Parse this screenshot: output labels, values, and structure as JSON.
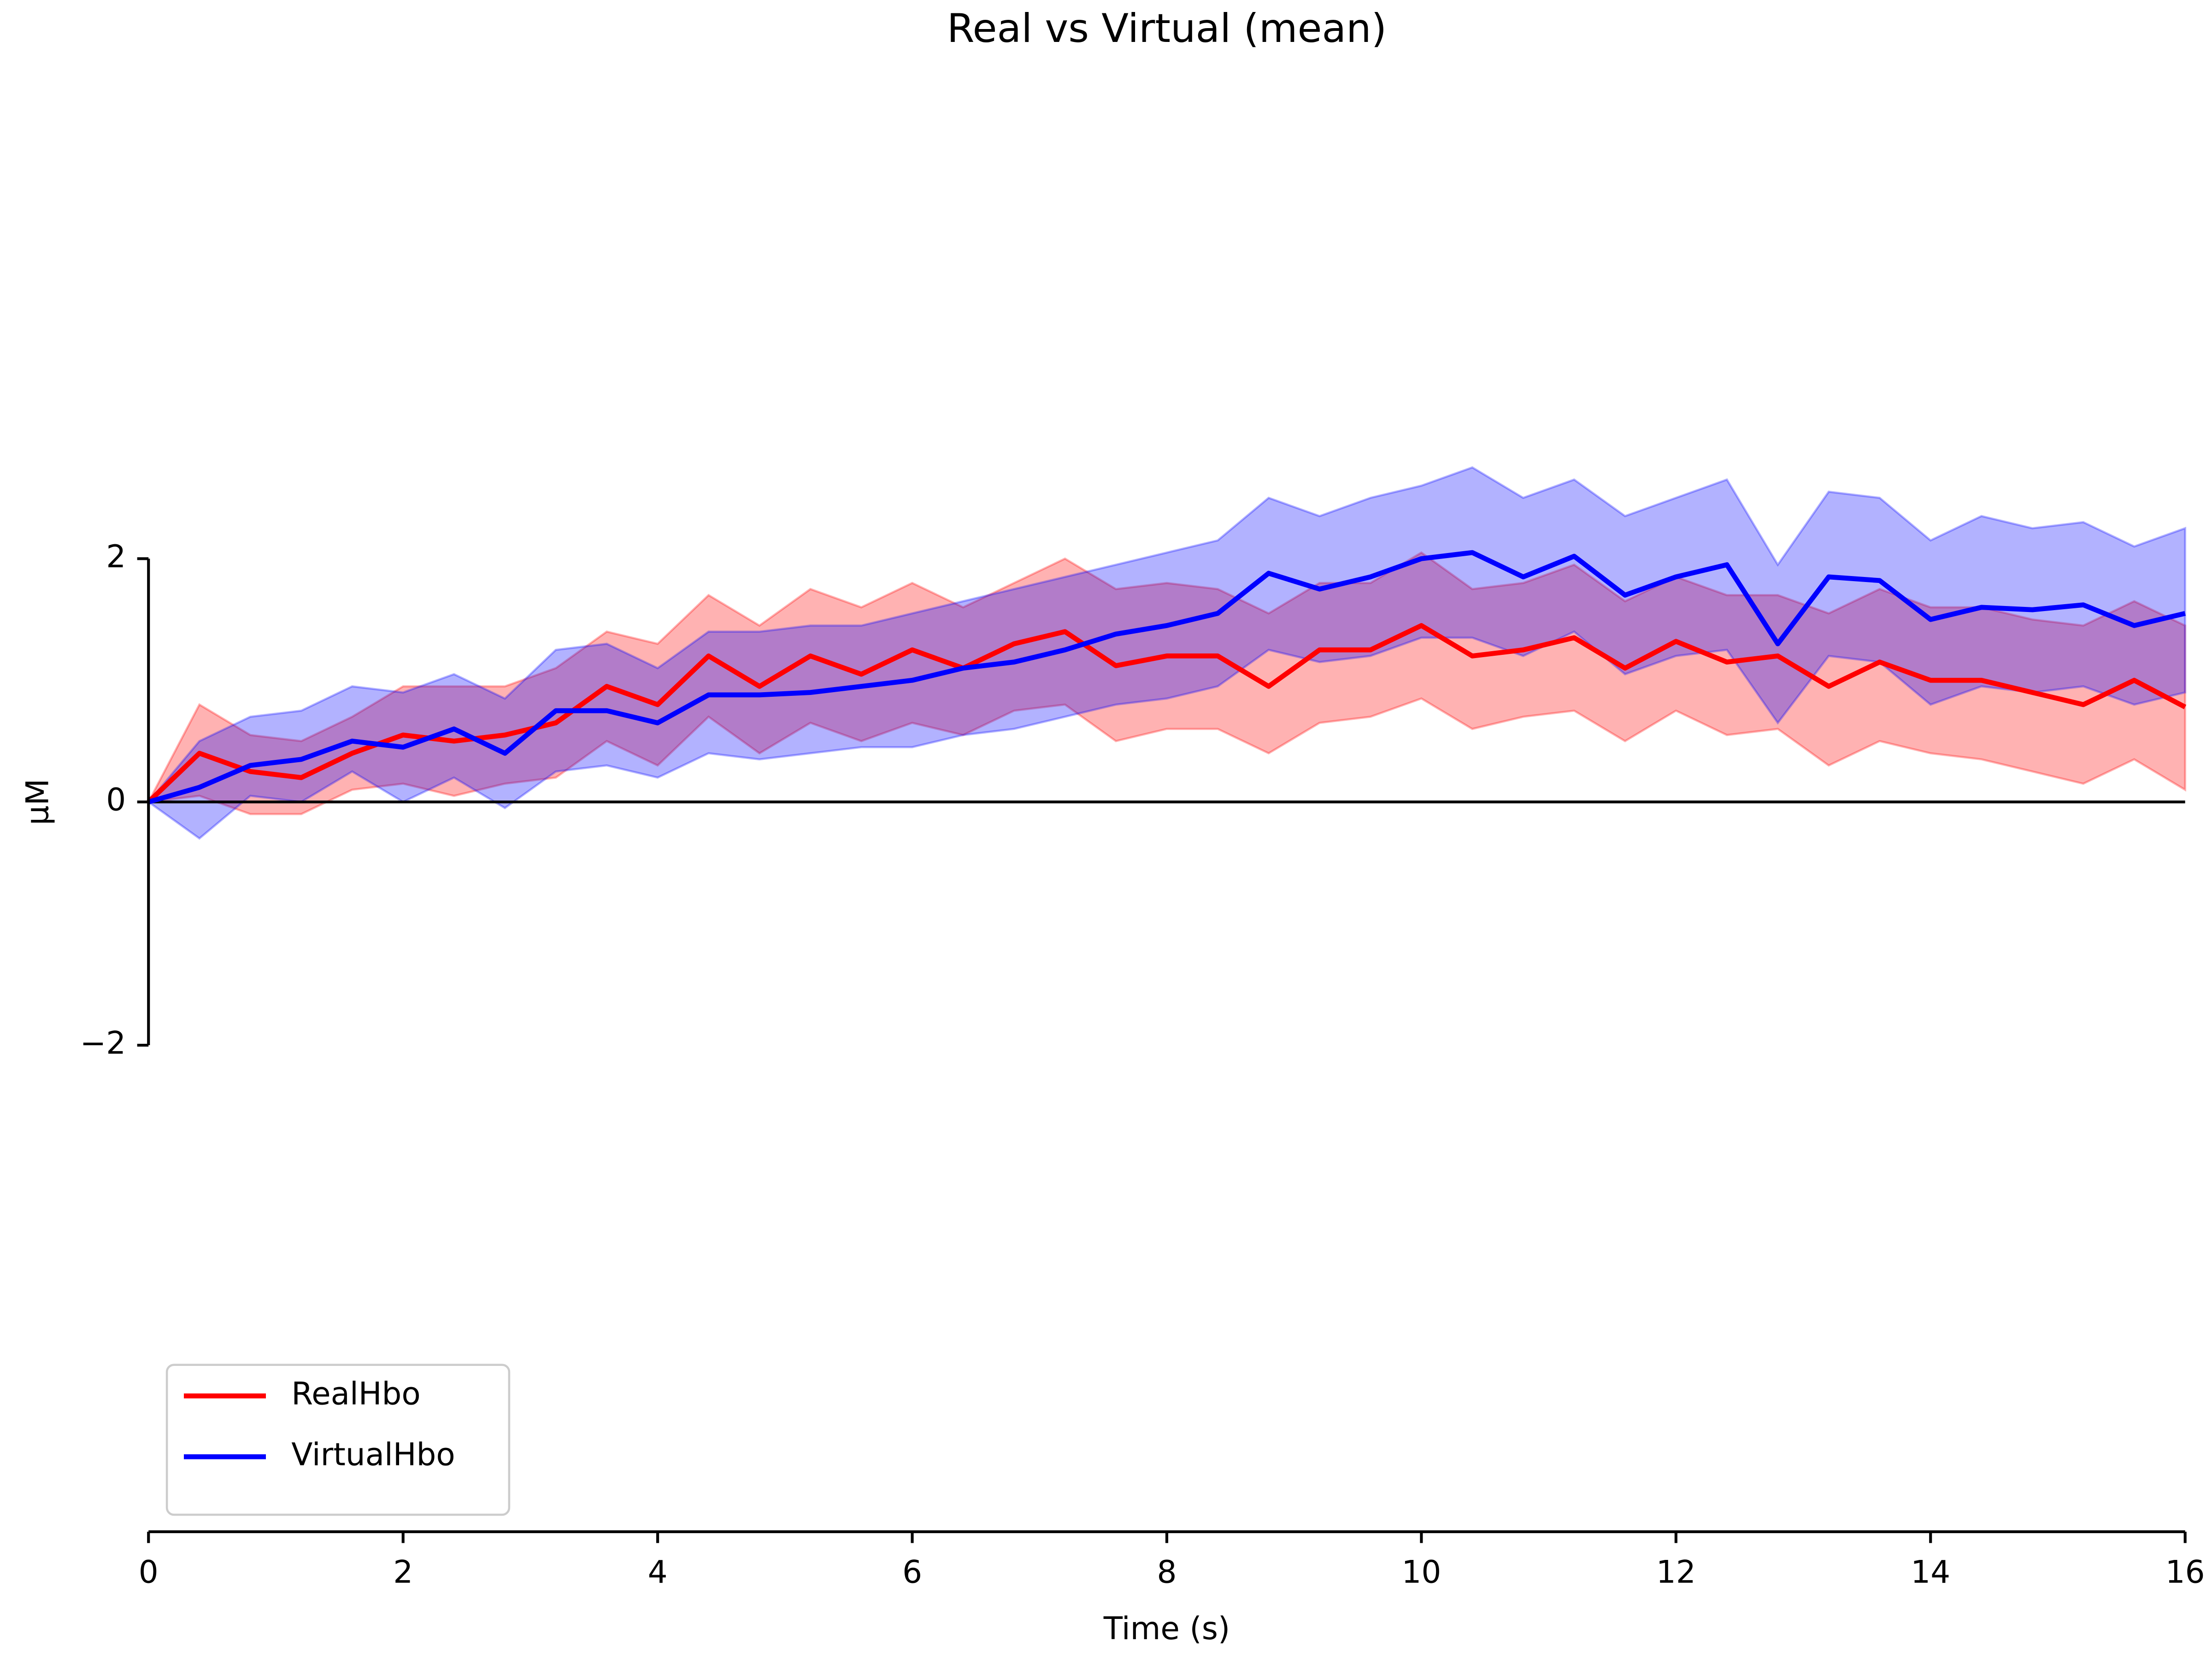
{
  "chart_data": {
    "type": "line",
    "title": "Real vs Virtual (mean)",
    "x_label": "Time (s)",
    "y_label": "µM",
    "x": [
      0,
      0.4,
      0.8,
      1.2,
      1.6,
      2.0,
      2.4,
      2.8,
      3.2,
      3.6,
      4.0,
      4.4,
      4.8,
      5.2,
      5.6,
      6.0,
      6.4,
      6.8,
      7.2,
      7.6,
      8.0,
      8.4,
      8.8,
      9.2,
      9.6,
      10.0,
      10.4,
      10.8,
      11.2,
      11.6,
      12.0,
      12.4,
      12.8,
      13.2,
      13.6,
      14.0,
      14.4,
      14.8,
      15.2,
      15.6,
      16.0
    ],
    "series": [
      {
        "name": "RealHbo",
        "color": "#ff0000",
        "values": [
          0,
          0.4,
          0.25,
          0.2,
          0.4,
          0.55,
          0.5,
          0.55,
          0.65,
          0.95,
          0.8,
          1.2,
          0.95,
          1.2,
          1.05,
          1.25,
          1.1,
          1.3,
          1.4,
          1.12,
          1.2,
          1.2,
          0.95,
          1.25,
          1.25,
          1.45,
          1.2,
          1.25,
          1.35,
          1.1,
          1.32,
          1.15,
          1.2,
          0.95,
          1.15,
          1.0,
          1.0,
          0.9,
          0.8,
          1.0,
          0.78
        ],
        "upper": [
          0,
          0.8,
          0.55,
          0.5,
          0.7,
          0.95,
          0.95,
          0.95,
          1.1,
          1.4,
          1.3,
          1.7,
          1.45,
          1.75,
          1.6,
          1.8,
          1.6,
          1.8,
          2.0,
          1.75,
          1.8,
          1.75,
          1.55,
          1.8,
          1.8,
          2.05,
          1.75,
          1.8,
          1.95,
          1.65,
          1.85,
          1.7,
          1.7,
          1.55,
          1.75,
          1.6,
          1.6,
          1.5,
          1.45,
          1.65,
          1.45
        ],
        "lower": [
          0,
          0.05,
          -0.1,
          -0.1,
          0.1,
          0.15,
          0.05,
          0.15,
          0.2,
          0.5,
          0.3,
          0.7,
          0.4,
          0.65,
          0.5,
          0.65,
          0.55,
          0.75,
          0.8,
          0.5,
          0.6,
          0.6,
          0.4,
          0.65,
          0.7,
          0.85,
          0.6,
          0.7,
          0.75,
          0.5,
          0.75,
          0.55,
          0.6,
          0.3,
          0.5,
          0.4,
          0.35,
          0.25,
          0.15,
          0.35,
          0.1
        ]
      },
      {
        "name": "VirtualHbo",
        "color": "#0000ff",
        "values": [
          0,
          0.12,
          0.3,
          0.35,
          0.5,
          0.45,
          0.6,
          0.4,
          0.75,
          0.75,
          0.65,
          0.88,
          0.88,
          0.9,
          0.95,
          1.0,
          1.1,
          1.15,
          1.25,
          1.38,
          1.45,
          1.55,
          1.88,
          1.75,
          1.85,
          2.0,
          2.05,
          1.85,
          2.02,
          1.7,
          1.85,
          1.95,
          1.3,
          1.85,
          1.82,
          1.5,
          1.6,
          1.58,
          1.62,
          1.45,
          1.55
        ],
        "upper": [
          0,
          0.5,
          0.7,
          0.75,
          0.95,
          0.9,
          1.05,
          0.85,
          1.25,
          1.3,
          1.1,
          1.4,
          1.4,
          1.45,
          1.45,
          1.55,
          1.65,
          1.75,
          1.85,
          1.95,
          2.05,
          2.15,
          2.5,
          2.35,
          2.5,
          2.6,
          2.75,
          2.5,
          2.65,
          2.35,
          2.5,
          2.65,
          1.95,
          2.55,
          2.5,
          2.15,
          2.35,
          2.25,
          2.3,
          2.1,
          2.25
        ],
        "lower": [
          0,
          -0.3,
          0.05,
          0.0,
          0.25,
          0.0,
          0.2,
          -0.05,
          0.25,
          0.3,
          0.2,
          0.4,
          0.35,
          0.4,
          0.45,
          0.45,
          0.55,
          0.6,
          0.7,
          0.8,
          0.85,
          0.95,
          1.25,
          1.15,
          1.2,
          1.35,
          1.35,
          1.2,
          1.4,
          1.05,
          1.2,
          1.25,
          0.65,
          1.2,
          1.15,
          0.8,
          0.95,
          0.9,
          0.95,
          0.8,
          0.9
        ]
      }
    ],
    "xlim": [
      0,
      16
    ],
    "xticks": [
      0,
      2,
      4,
      6,
      8,
      10,
      12,
      14,
      16
    ],
    "ylim": [
      -6,
      6
    ],
    "yticks": [
      {
        "value": -2,
        "label": "−2"
      },
      0,
      2
    ],
    "hline": 0,
    "legend": "lower left"
  }
}
